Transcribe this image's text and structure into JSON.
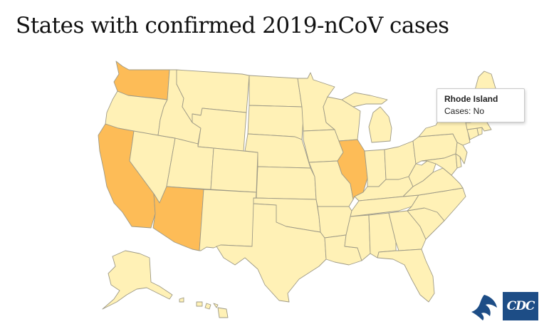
{
  "title": "States with confirmed 2019-nCoV cases",
  "legend_colors": {
    "cases_yes": "#fdbc57",
    "cases_no": "#fff1b6",
    "border": "#9e9a86"
  },
  "states_with_cases": [
    "Washington",
    "California",
    "Arizona",
    "Illinois"
  ],
  "tooltip": {
    "state": "Rhode Island",
    "cases_label": "Cases: No"
  },
  "logos": {
    "hhs_icon": "hhs-eagle-icon",
    "cdc_label": "CDC"
  }
}
